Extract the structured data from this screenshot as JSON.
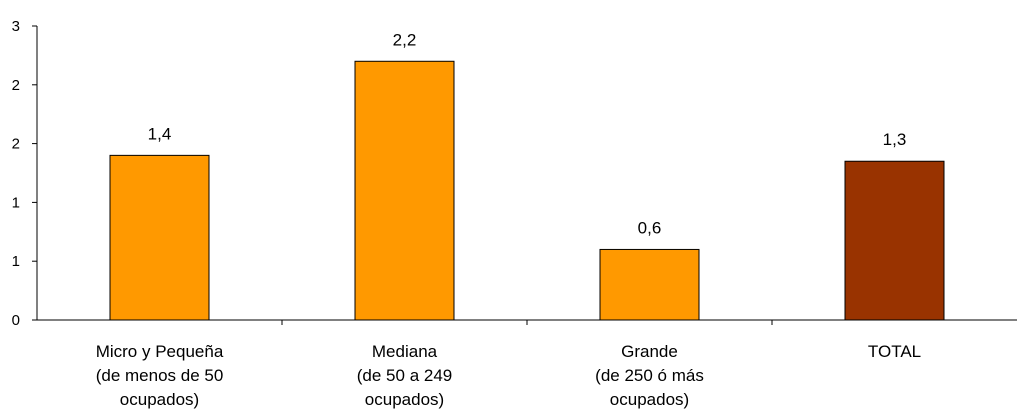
{
  "chart_data": {
    "type": "bar",
    "categories": [
      [
        "Micro y Pequeña",
        "(de menos de 50",
        "ocupados)"
      ],
      [
        "Mediana",
        "(de 50 a 249",
        "ocupados)"
      ],
      [
        "Grande",
        "(de 250 ó más",
        "ocupados)"
      ],
      [
        "TOTAL"
      ]
    ],
    "values": [
      1.4,
      2.2,
      0.6,
      1.3
    ],
    "data_labels": [
      "1,4",
      "2,2",
      "0,6",
      "1,3"
    ],
    "bar_heights": [
      1.4,
      2.2,
      0.6,
      1.35
    ],
    "bar_colors": [
      "#FF9900",
      "#FF9900",
      "#FF9900",
      "#993300"
    ],
    "yticks": [
      {
        "value": 0,
        "label": "0"
      },
      {
        "value": 0.5,
        "label": "1"
      },
      {
        "value": 1.0,
        "label": "1"
      },
      {
        "value": 1.5,
        "label": "2"
      },
      {
        "value": 2.0,
        "label": "2"
      },
      {
        "value": 2.5,
        "label": "3"
      }
    ],
    "ylim": [
      0,
      2.5
    ],
    "title": "",
    "xlabel": "",
    "ylabel": "",
    "grid": false,
    "legend": "none"
  }
}
